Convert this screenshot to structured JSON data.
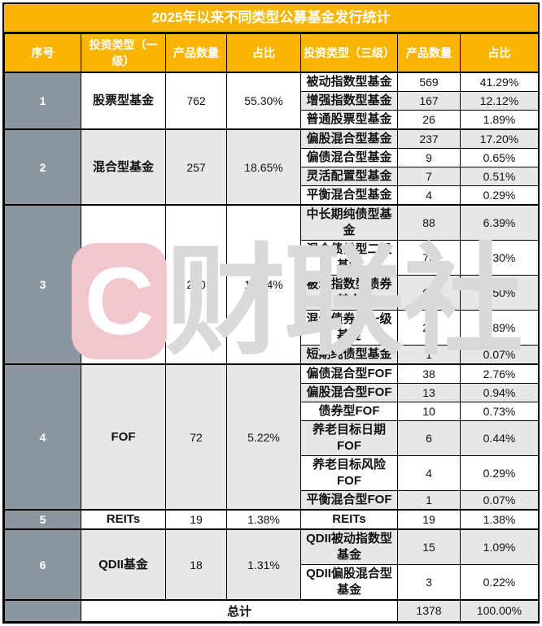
{
  "chart_data": {
    "type": "table",
    "title": "2025年以来不同类型公募基金发行统计",
    "columns": [
      "序号",
      "投资类型（一级）",
      "产品数量",
      "占比",
      "投资类型（三级）",
      "产品数量",
      "占比"
    ],
    "groups": [
      {
        "no": "1",
        "type": "股票型基金",
        "count": "762",
        "share": "55.30%",
        "subs": [
          {
            "type": "被动指数型基金",
            "count": "569",
            "share": "41.29%"
          },
          {
            "type": "增强指数型基金",
            "count": "167",
            "share": "12.12%"
          },
          {
            "type": "普通股票型基金",
            "count": "26",
            "share": "1.89%"
          }
        ]
      },
      {
        "no": "2",
        "type": "混合型基金",
        "count": "257",
        "share": "18.65%",
        "subs": [
          {
            "type": "偏股混合型基金",
            "count": "237",
            "share": "17.20%"
          },
          {
            "type": "偏债混合型基金",
            "count": "9",
            "share": "0.65%"
          },
          {
            "type": "灵活配置型基金",
            "count": "7",
            "share": "0.51%"
          },
          {
            "type": "平衡混合型基金",
            "count": "4",
            "share": "0.29%"
          }
        ]
      },
      {
        "no": "3",
        "type": "债券型基金",
        "count": "250",
        "share": "18.14%",
        "subs": [
          {
            "type": "中长期纯债型基金",
            "count": "88",
            "share": "6.39%"
          },
          {
            "type": "混合债券型二级基金",
            "count": "73",
            "share": "5.30%"
          },
          {
            "type": "被动指数型债券基金",
            "count": "62",
            "share": "4.50%"
          },
          {
            "type": "混合债券型一级基金",
            "count": "26",
            "share": "1.89%"
          },
          {
            "type": "短期纯债型基金",
            "count": "1",
            "share": "0.07%"
          }
        ]
      },
      {
        "no": "4",
        "type": "FOF",
        "count": "72",
        "share": "5.22%",
        "subs": [
          {
            "type": "偏债混合型FOF",
            "count": "38",
            "share": "2.76%"
          },
          {
            "type": "偏股混合型FOF",
            "count": "13",
            "share": "0.94%"
          },
          {
            "type": "债券型FOF",
            "count": "10",
            "share": "0.73%"
          },
          {
            "type": "养老目标日期FOF",
            "count": "6",
            "share": "0.44%"
          },
          {
            "type": "养老目标风险FOF",
            "count": "4",
            "share": "0.29%"
          },
          {
            "type": "平衡混合型FOF",
            "count": "1",
            "share": "0.07%"
          }
        ]
      },
      {
        "no": "5",
        "type": "REITs",
        "count": "19",
        "share": "1.38%",
        "subs": [
          {
            "type": "REITs",
            "count": "19",
            "share": "1.38%"
          }
        ]
      },
      {
        "no": "6",
        "type": "QDII基金",
        "count": "18",
        "share": "1.31%",
        "subs": [
          {
            "type": "QDII被动指数型基金",
            "count": "15",
            "share": "1.09%"
          },
          {
            "type": "QDII偏股混合型基金",
            "count": "3",
            "share": "0.22%"
          }
        ]
      }
    ],
    "total": {
      "label": "总计",
      "count": "1378",
      "share": "100.00%"
    }
  },
  "watermark": {
    "logo_letter": "C",
    "text": "财联社"
  },
  "colors": {
    "header_orange": "#F9B500",
    "seq_gray": "#8C96A1",
    "row_alt_gray": "#E7E7E7",
    "border_black": "#000000",
    "watermark_pink": "#F2C6CD",
    "watermark_gray": "#D9D9D9",
    "header_text": "#FFFFFF",
    "body_text": "#111111"
  }
}
